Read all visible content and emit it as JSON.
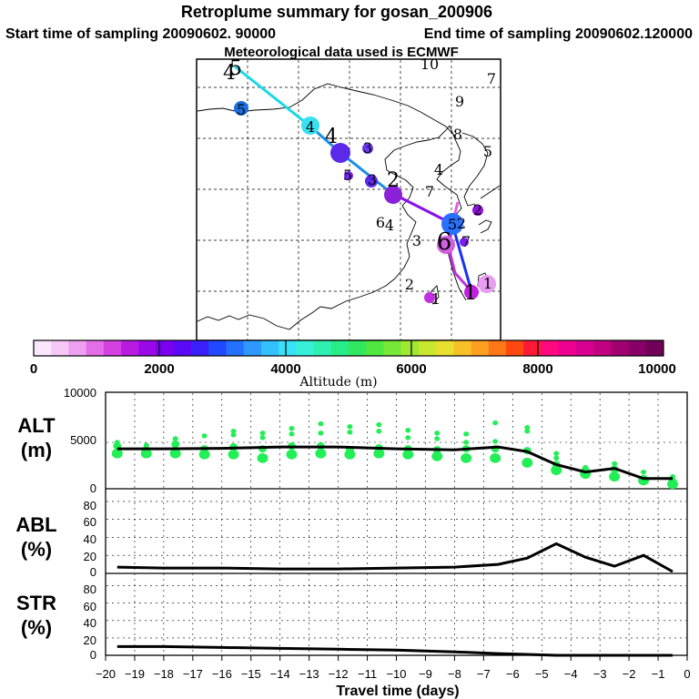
{
  "title": "Retroplume summary for gosan_200906",
  "start_label": "Start time of sampling 20090602. 90000",
  "end_label": "End time of sampling 20090602.120000",
  "met_label": "Meteorological data used is ECMWF",
  "colorbar": {
    "ticks": [
      "0",
      "2000",
      "4000",
      "6000",
      "8000",
      "10000"
    ],
    "label": "Altitude (m)",
    "colors": [
      "#fbe6fb",
      "#f5c8f5",
      "#ee9ff0",
      "#e46ee8",
      "#d440e2",
      "#b81ae0",
      "#9a08e8",
      "#7a00f0",
      "#5a0af5",
      "#3a20fa",
      "#2048ff",
      "#2470ff",
      "#2e98ff",
      "#34c0ff",
      "#38e0f8",
      "#38f0d8",
      "#30f0b0",
      "#28ec88",
      "#30e860",
      "#50e840",
      "#78e838",
      "#a0e834",
      "#c8e830",
      "#e8e030",
      "#f8c028",
      "#ffa020",
      "#ff7818",
      "#ff4810",
      "#ff1838",
      "#ff0880",
      "#f00090",
      "#d80090",
      "#c00080",
      "#a00070",
      "#880068",
      "#700058"
    ]
  },
  "map": {
    "cluster_labels": [
      {
        "text": "1"
      },
      {
        "text": "2"
      },
      {
        "text": "3"
      },
      {
        "text": "4"
      },
      {
        "text": "5"
      },
      {
        "text": "6"
      },
      {
        "text": "7"
      },
      {
        "text": "8"
      },
      {
        "text": "9"
      },
      {
        "text": "10"
      }
    ]
  },
  "panels": [
    {
      "label_line1": "ALT",
      "label_line2": "(m)",
      "yticks": [
        "10000",
        "5000",
        "0"
      ]
    },
    {
      "label_line1": "ABL",
      "label_line2": "(%)",
      "yticks": [
        "80",
        "60",
        "40",
        "20",
        "0"
      ]
    },
    {
      "label_line1": "STR",
      "label_line2": "(%)",
      "yticks": [
        "80",
        "60",
        "40",
        "20",
        "0"
      ]
    }
  ],
  "xaxis": {
    "label": "Travel time (days)",
    "ticks": [
      "−20",
      "−19",
      "−18",
      "−17",
      "−16",
      "−15",
      "−14",
      "−13",
      "−12",
      "−11",
      "−10",
      "−9",
      "−8",
      "−7",
      "−6",
      "−5",
      "−4",
      "−3",
      "−2",
      "−1",
      "0"
    ]
  },
  "chart_data": {
    "type": "line",
    "x_range": [
      -20,
      0
    ],
    "series": [
      {
        "name": "ALT (m)",
        "ylim": [
          0,
          10000
        ],
        "x": [
          -19.6,
          -18,
          -16,
          -14,
          -12,
          -10,
          -8,
          -6.5,
          -5.5,
          -4.5,
          -3.5,
          -2.5,
          -1.5,
          -0.5
        ],
        "y": [
          4300,
          4300,
          4350,
          4500,
          4500,
          4300,
          4200,
          4500,
          4000,
          2600,
          1800,
          2200,
          1100,
          1100
        ]
      },
      {
        "name": "ABL (%)",
        "ylim": [
          0,
          90
        ],
        "x": [
          -19.6,
          -18,
          -16,
          -14,
          -12,
          -10,
          -8,
          -6.5,
          -5.5,
          -4.5,
          -3.5,
          -2.5,
          -1.5,
          -0.5
        ],
        "y": [
          7,
          6,
          6,
          5,
          5,
          6,
          7,
          10,
          17,
          33,
          18,
          8,
          20,
          2
        ]
      },
      {
        "name": "STR (%)",
        "ylim": [
          0,
          90
        ],
        "x": [
          -19.6,
          -18,
          -16,
          -14,
          -12,
          -10,
          -8,
          -6.5,
          -5.5,
          -4.5,
          -3.5,
          -2.5,
          -1.5,
          -0.5
        ],
        "y": [
          10,
          10,
          9,
          8,
          7,
          6,
          4,
          2,
          1,
          0,
          0,
          0,
          0,
          0
        ]
      }
    ],
    "alt_clusters": [
      {
        "x": -19.6,
        "y": [
          3800,
          4600,
          5000
        ]
      },
      {
        "x": -18.6,
        "y": [
          3800,
          4200,
          4700
        ]
      },
      {
        "x": -17.6,
        "y": [
          3800,
          4800,
          5400
        ]
      },
      {
        "x": -16.6,
        "y": [
          3700,
          4300,
          5700
        ]
      },
      {
        "x": -15.6,
        "y": [
          3700,
          4500,
          5800,
          6200
        ]
      },
      {
        "x": -14.6,
        "y": [
          3300,
          4300,
          5500,
          6000
        ]
      },
      {
        "x": -13.6,
        "y": [
          3700,
          4600,
          5900,
          6500
        ]
      },
      {
        "x": -12.6,
        "y": [
          3800,
          4600,
          6000,
          7000
        ]
      },
      {
        "x": -11.6,
        "y": [
          3700,
          4200,
          6100,
          6700
        ]
      },
      {
        "x": -10.6,
        "y": [
          3800,
          4400,
          6200,
          6900
        ]
      },
      {
        "x": -9.6,
        "y": [
          3700,
          4300,
          5500,
          6300
        ]
      },
      {
        "x": -8.6,
        "y": [
          3500,
          4200,
          5400,
          6000
        ]
      },
      {
        "x": -7.6,
        "y": [
          3300,
          4300,
          5000,
          5900
        ]
      },
      {
        "x": -6.6,
        "y": [
          3300,
          4300,
          5100,
          7100
        ]
      },
      {
        "x": -5.5,
        "y": [
          2800,
          4100,
          6200,
          6600
        ]
      },
      {
        "x": -4.5,
        "y": [
          2000,
          2600,
          3300,
          3800
        ]
      },
      {
        "x": -3.5,
        "y": [
          1600,
          2000,
          2300
        ]
      },
      {
        "x": -2.5,
        "y": [
          1300,
          2100,
          2700
        ]
      },
      {
        "x": -1.5,
        "y": [
          900,
          1100,
          1800
        ]
      },
      {
        "x": -0.5,
        "y": [
          500,
          800,
          1300
        ]
      }
    ]
  }
}
